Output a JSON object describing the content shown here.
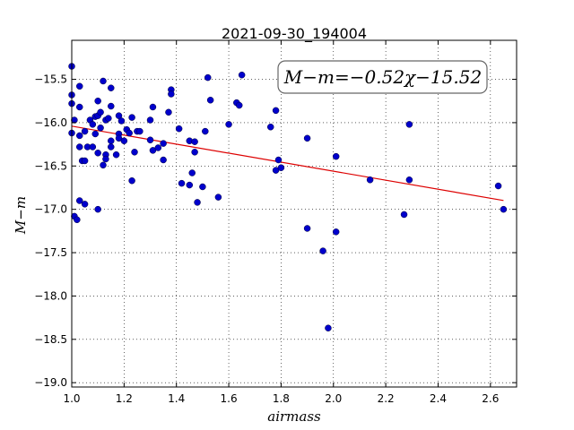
{
  "chart_data": {
    "type": "scatter",
    "title": "2021-09-30_194004",
    "xlabel": "airmass",
    "ylabel": "M−m",
    "xlim": [
      1.0,
      2.7
    ],
    "ylim": [
      -19.05,
      -15.05
    ],
    "y_inverted": true,
    "xticks": [
      1.0,
      1.2,
      1.4,
      1.6,
      1.8,
      2.0,
      2.2,
      2.4,
      2.6
    ],
    "xtick_labels": [
      "1.0",
      "1.2",
      "1.4",
      "1.6",
      "1.8",
      "2.0",
      "2.2",
      "2.4",
      "2.6"
    ],
    "yticks": [
      -15.5,
      -16.0,
      -16.5,
      -17.0,
      -17.5,
      -18.0,
      -18.5,
      -19.0
    ],
    "ytick_labels": [
      "−15.5",
      "−16.0",
      "−16.5",
      "−17.0",
      "−17.5",
      "−18.0",
      "−18.5",
      "−19.0"
    ],
    "grid": true,
    "annotation": "M−m=−0.52χ−15.52",
    "fit": {
      "slope": -0.52,
      "intercept": -15.52,
      "x_range": [
        1.0,
        2.65
      ]
    },
    "point_color": "#0000cc",
    "fit_color": "#dd0000",
    "points": [
      [
        1.0,
        -15.35
      ],
      [
        1.0,
        -15.68
      ],
      [
        1.0,
        -15.78
      ],
      [
        1.01,
        -15.97
      ],
      [
        1.0,
        -16.12
      ],
      [
        1.01,
        -17.08
      ],
      [
        1.02,
        -17.12
      ],
      [
        1.03,
        -15.58
      ],
      [
        1.03,
        -15.82
      ],
      [
        1.03,
        -16.15
      ],
      [
        1.03,
        -16.28
      ],
      [
        1.03,
        -16.9
      ],
      [
        1.04,
        -16.44
      ],
      [
        1.05,
        -16.1
      ],
      [
        1.05,
        -16.44
      ],
      [
        1.05,
        -16.94
      ],
      [
        1.06,
        -16.28
      ],
      [
        1.07,
        -15.97
      ],
      [
        1.08,
        -16.02
      ],
      [
        1.08,
        -16.28
      ],
      [
        1.09,
        -16.13
      ],
      [
        1.09,
        -15.93
      ],
      [
        1.1,
        -15.92
      ],
      [
        1.1,
        -15.75
      ],
      [
        1.1,
        -16.35
      ],
      [
        1.1,
        -17.0
      ],
      [
        1.11,
        -15.88
      ],
      [
        1.11,
        -16.06
      ],
      [
        1.12,
        -15.52
      ],
      [
        1.12,
        -16.49
      ],
      [
        1.13,
        -15.97
      ],
      [
        1.13,
        -16.37
      ],
      [
        1.13,
        -16.42
      ],
      [
        1.14,
        -15.95
      ],
      [
        1.15,
        -16.28
      ],
      [
        1.15,
        -16.21
      ],
      [
        1.15,
        -15.81
      ],
      [
        1.15,
        -15.6
      ],
      [
        1.17,
        -16.37
      ],
      [
        1.18,
        -16.13
      ],
      [
        1.18,
        -16.18
      ],
      [
        1.18,
        -15.92
      ],
      [
        1.19,
        -15.98
      ],
      [
        1.2,
        -16.21
      ],
      [
        1.21,
        -16.08
      ],
      [
        1.22,
        -16.12
      ],
      [
        1.23,
        -15.94
      ],
      [
        1.23,
        -16.67
      ],
      [
        1.24,
        -16.34
      ],
      [
        1.25,
        -16.1
      ],
      [
        1.26,
        -16.1
      ],
      [
        1.3,
        -15.97
      ],
      [
        1.3,
        -16.2
      ],
      [
        1.31,
        -15.82
      ],
      [
        1.31,
        -16.32
      ],
      [
        1.33,
        -16.29
      ],
      [
        1.35,
        -16.24
      ],
      [
        1.35,
        -16.43
      ],
      [
        1.37,
        -15.88
      ],
      [
        1.38,
        -15.62
      ],
      [
        1.38,
        -15.67
      ],
      [
        1.41,
        -16.07
      ],
      [
        1.42,
        -16.7
      ],
      [
        1.45,
        -16.21
      ],
      [
        1.45,
        -16.72
      ],
      [
        1.46,
        -16.58
      ],
      [
        1.47,
        -16.34
      ],
      [
        1.47,
        -16.22
      ],
      [
        1.48,
        -16.92
      ],
      [
        1.5,
        -16.74
      ],
      [
        1.51,
        -16.1
      ],
      [
        1.52,
        -15.48
      ],
      [
        1.53,
        -15.74
      ],
      [
        1.56,
        -16.86
      ],
      [
        1.6,
        -16.02
      ],
      [
        1.63,
        -15.77
      ],
      [
        1.64,
        -15.8
      ],
      [
        1.65,
        -15.45
      ],
      [
        1.76,
        -16.05
      ],
      [
        1.78,
        -16.55
      ],
      [
        1.78,
        -15.86
      ],
      [
        1.79,
        -16.43
      ],
      [
        1.8,
        -16.52
      ],
      [
        1.9,
        -16.18
      ],
      [
        1.9,
        -17.22
      ],
      [
        1.96,
        -17.48
      ],
      [
        1.98,
        -18.37
      ],
      [
        2.01,
        -16.39
      ],
      [
        2.01,
        -17.26
      ],
      [
        2.14,
        -16.66
      ],
      [
        2.27,
        -17.06
      ],
      [
        2.29,
        -16.66
      ],
      [
        2.29,
        -16.02
      ],
      [
        2.63,
        -16.73
      ],
      [
        2.65,
        -17.0
      ]
    ]
  }
}
